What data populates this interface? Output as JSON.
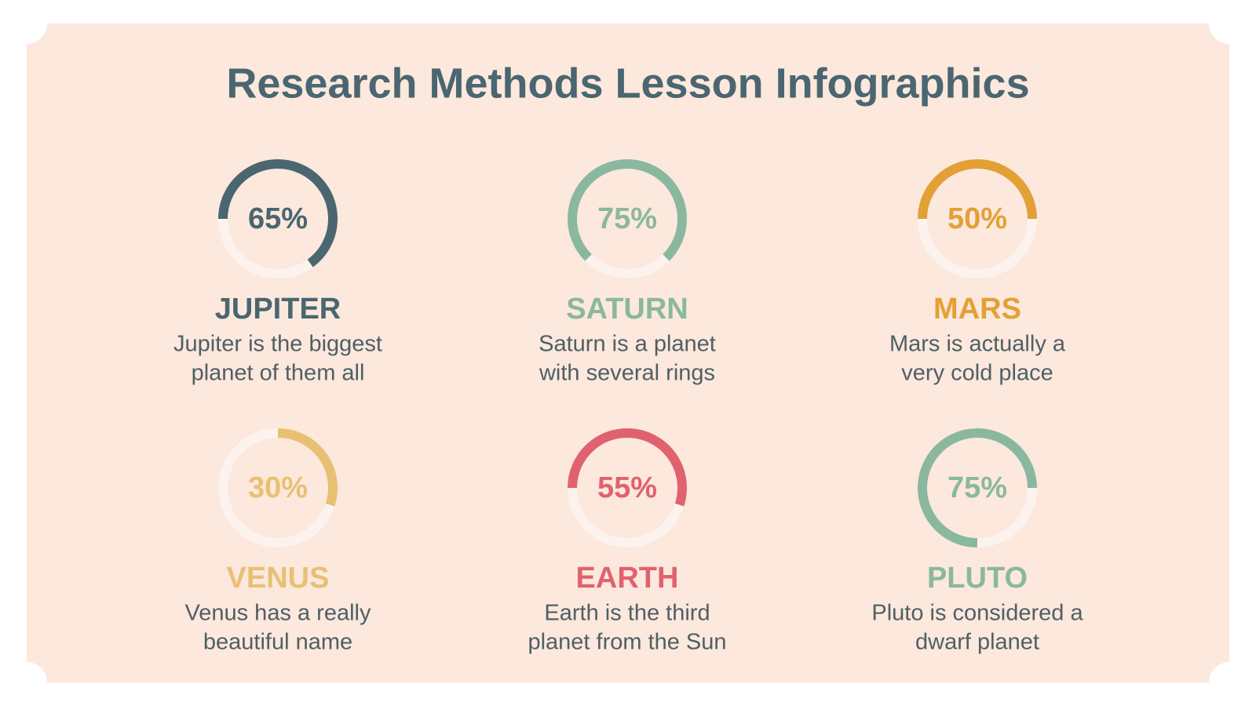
{
  "title": "Research Methods Lesson Infographics",
  "chart_data": [
    {
      "type": "donut",
      "title": "JUPITER",
      "description": [
        "Jupiter is the biggest",
        "planet of them all"
      ],
      "values": [
        65
      ],
      "value_labels": [
        "65%"
      ],
      "ylim": [
        0,
        100
      ],
      "start_angle": 270,
      "color": "#4a6670"
    },
    {
      "type": "donut",
      "title": "SATURN",
      "description": [
        "Saturn is a planet",
        "with several rings"
      ],
      "values": [
        75
      ],
      "value_labels": [
        "75%"
      ],
      "ylim": [
        0,
        100
      ],
      "start_angle": 225,
      "color": "#8ab89e"
    },
    {
      "type": "donut",
      "title": "MARS",
      "description": [
        "Mars is actually a",
        "very cold place"
      ],
      "values": [
        50
      ],
      "value_labels": [
        "50%"
      ],
      "ylim": [
        0,
        100
      ],
      "start_angle": 270,
      "color": "#e3a035"
    },
    {
      "type": "donut",
      "title": "VENUS",
      "description": [
        "Venus has a really",
        "beautiful name"
      ],
      "values": [
        30
      ],
      "value_labels": [
        "30%"
      ],
      "ylim": [
        0,
        100
      ],
      "start_angle": 0,
      "color": "#e8c073"
    },
    {
      "type": "donut",
      "title": "EARTH",
      "description": [
        "Earth is the third",
        "planet from the Sun"
      ],
      "values": [
        55
      ],
      "value_labels": [
        "55%"
      ],
      "ylim": [
        0,
        100
      ],
      "start_angle": 270,
      "color": "#e0626e"
    },
    {
      "type": "donut",
      "title": "PLUTO",
      "description": [
        "Pluto is considered a",
        "dwarf planet"
      ],
      "values": [
        75
      ],
      "value_labels": [
        "75%"
      ],
      "ylim": [
        0,
        100
      ],
      "start_angle": 180,
      "color": "#8ab89e"
    }
  ]
}
